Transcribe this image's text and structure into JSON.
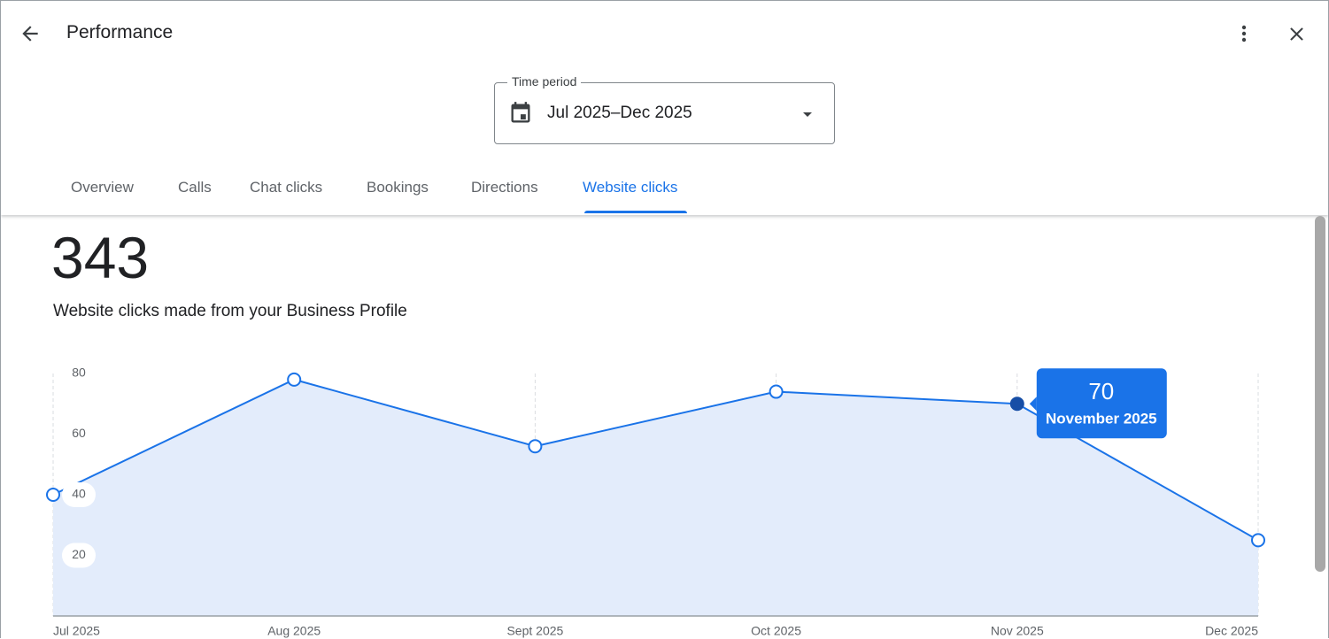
{
  "header": {
    "title": "Performance"
  },
  "time_period": {
    "label": "Time period",
    "value": "Jul 2025–Dec 2025"
  },
  "tabs": [
    "Overview",
    "Calls",
    "Chat clicks",
    "Bookings",
    "Directions",
    "Website clicks"
  ],
  "total": "343",
  "description": "Website clicks made from your Business Profile",
  "chart_data": {
    "type": "area",
    "categories": [
      "Jul 2025",
      "Aug 2025",
      "Sept 2025",
      "Oct 2025",
      "Nov 2025",
      "Dec 2025"
    ],
    "values": [
      40,
      78,
      56,
      74,
      70,
      25
    ],
    "color": "#1a73e8",
    "ylim": [
      0,
      80
    ],
    "yticks": [
      20,
      40,
      60,
      80
    ],
    "tooltip_label": "November 2025"
  }
}
